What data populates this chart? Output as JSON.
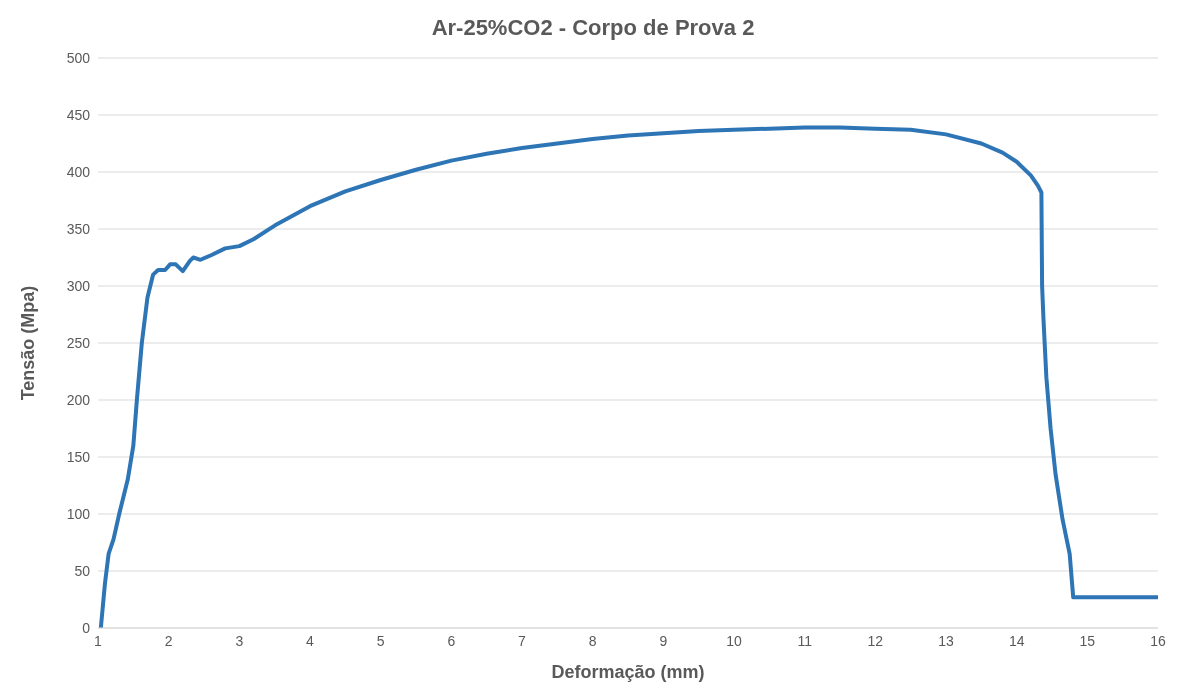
{
  "chart_data": {
    "type": "line",
    "title": "Ar-25%CO2 - Corpo de Prova 2",
    "xlabel": "Deformação (mm)",
    "ylabel": "Tensão (Mpa)",
    "series": [
      {
        "color": "#2e75b6",
        "x": [
          1.04,
          1.1,
          1.15,
          1.22,
          1.3,
          1.42,
          1.5,
          1.55,
          1.62,
          1.7,
          1.78,
          1.85,
          1.95,
          2.02,
          2.1,
          2.2,
          2.3,
          2.35,
          2.45,
          2.6,
          2.8,
          3.0,
          3.2,
          3.5,
          4,
          4.5,
          5,
          5.5,
          6,
          6.5,
          7,
          7.5,
          8,
          8.5,
          9,
          9.5,
          10,
          10.5,
          11,
          11.5,
          12,
          12.5,
          13,
          13.5,
          13.8,
          14.0,
          14.2,
          14.3,
          14.35,
          14.36,
          14.38,
          14.42,
          14.48,
          14.55,
          14.65,
          14.75,
          14.8,
          14.81,
          15,
          15.5,
          16
        ],
        "values": [
          0,
          40,
          65,
          78,
          100,
          130,
          160,
          200,
          250,
          290,
          310,
          314,
          314,
          319,
          319,
          313,
          322,
          325,
          323,
          327,
          333,
          335,
          341,
          353,
          370,
          383,
          393,
          402,
          410,
          416,
          421,
          425,
          429,
          432,
          434,
          436,
          437,
          438,
          439,
          439,
          438,
          437,
          433,
          425,
          417,
          409,
          397,
          388,
          382,
          300,
          270,
          220,
          175,
          135,
          95,
          65,
          27,
          27,
          27,
          27,
          27
        ]
      }
    ],
    "xlim": [
      1,
      16
    ],
    "xticks": [
      1,
      2,
      3,
      4,
      5,
      6,
      7,
      8,
      9,
      10,
      11,
      12,
      13,
      14,
      15,
      16
    ],
    "ylim": [
      0,
      500
    ],
    "yticks": [
      0,
      50,
      100,
      150,
      200,
      250,
      300,
      350,
      400,
      450,
      500
    ],
    "grid": "y",
    "legend": false,
    "marker": "none",
    "line_style": "solid"
  }
}
